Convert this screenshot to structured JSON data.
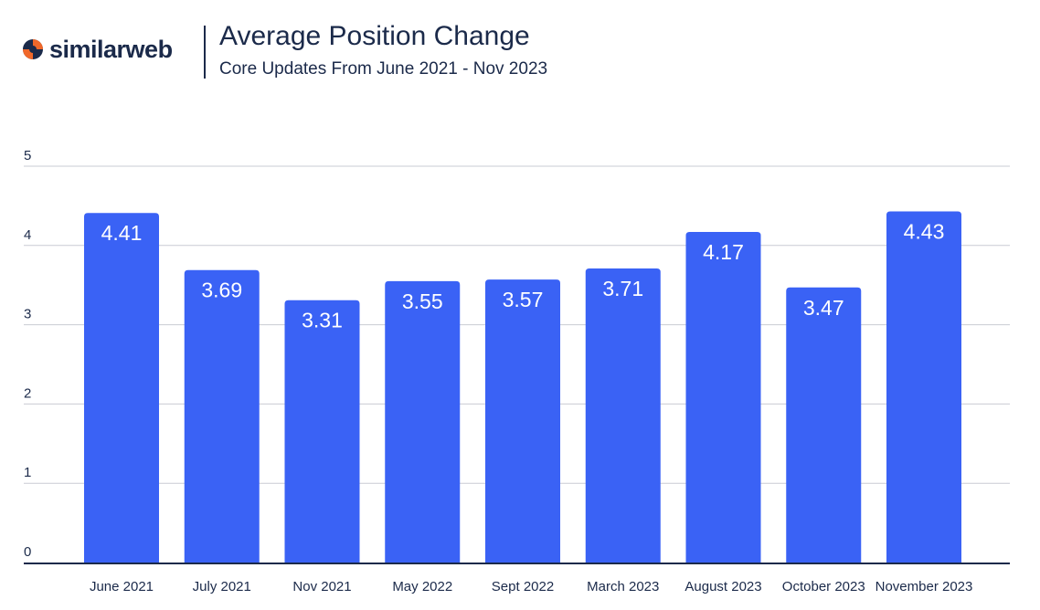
{
  "brand": {
    "name": "similarweb",
    "accent": "#f0682a",
    "text_color": "#1b2a4a"
  },
  "chart_data": {
    "type": "bar",
    "title": "Average Position Change",
    "subtitle": "Core Updates From June 2021 - Nov 2023",
    "xlabel": "",
    "ylabel": "",
    "ylim": [
      0,
      5
    ],
    "yticks": [
      "0",
      "1",
      "2",
      "3",
      "4",
      "5"
    ],
    "grid": true,
    "bar_color": "#3a62f5",
    "categories": [
      "June 2021",
      "July 2021",
      "Nov 2021",
      "May 2022",
      "Sept 2022",
      "March 2023",
      "August 2023",
      "October 2023",
      "November 2023"
    ],
    "values": [
      4.41,
      3.69,
      3.31,
      3.55,
      3.57,
      3.71,
      4.17,
      3.47,
      4.43
    ],
    "data_labels": [
      "4.41",
      "3.69",
      "3.31",
      "3.55",
      "3.57",
      "3.71",
      "4.17",
      "3.47",
      "4.43"
    ]
  }
}
